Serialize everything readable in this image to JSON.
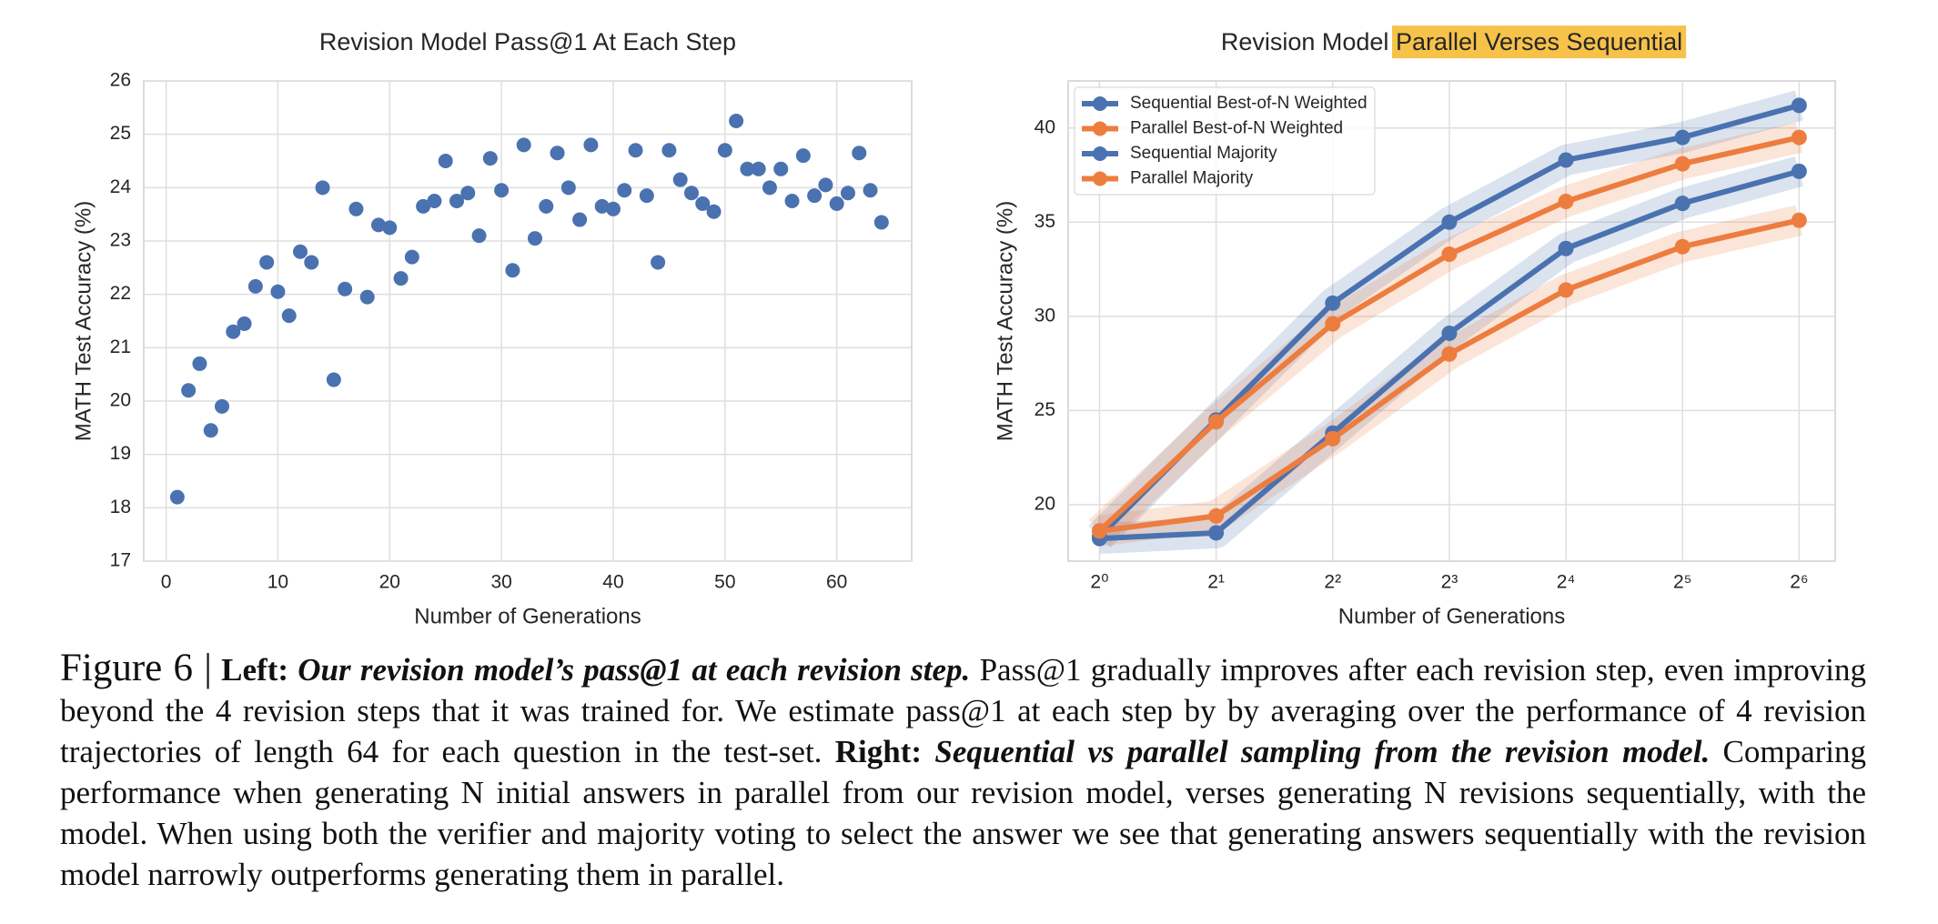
{
  "chart_data": [
    {
      "type": "scatter",
      "title": "Revision Model Pass@1 At Each Step",
      "x_label": "Number of Generations",
      "y_label": "MATH Test Accuracy (%)",
      "x": [
        1,
        2,
        3,
        4,
        5,
        6,
        7,
        8,
        9,
        10,
        11,
        12,
        13,
        14,
        15,
        16,
        17,
        18,
        19,
        20,
        21,
        22,
        23,
        24,
        25,
        26,
        27,
        28,
        29,
        30,
        31,
        32,
        33,
        34,
        35,
        36,
        37,
        38,
        39,
        40,
        41,
        42,
        43,
        44,
        45,
        46,
        47,
        48,
        49,
        50,
        51,
        52,
        53,
        54,
        55,
        56,
        57,
        58,
        59,
        60,
        61,
        62,
        63,
        64
      ],
      "values": [
        18.2,
        20.2,
        20.7,
        19.45,
        19.9,
        21.3,
        21.45,
        22.15,
        22.6,
        22.05,
        21.6,
        22.8,
        22.6,
        24.0,
        20.4,
        22.1,
        23.6,
        21.95,
        23.3,
        23.25,
        22.3,
        22.7,
        23.65,
        23.75,
        24.5,
        23.75,
        23.9,
        23.1,
        24.55,
        23.95,
        22.45,
        24.8,
        23.05,
        23.65,
        24.65,
        24.0,
        23.4,
        24.8,
        23.65,
        23.6,
        23.95,
        24.7,
        23.85,
        22.6,
        24.7,
        24.15,
        23.9,
        23.7,
        23.55,
        24.7,
        25.25,
        24.35,
        24.35,
        24.0,
        24.35,
        23.75,
        24.6,
        23.85,
        24.05,
        23.7,
        23.9,
        24.65,
        23.95,
        23.35
      ],
      "color": "#4a72b0",
      "xlim": [
        -2,
        66.7
      ],
      "ylim": [
        17,
        26
      ],
      "xticks": [
        0,
        10,
        20,
        30,
        40,
        50,
        60
      ],
      "yticks": [
        17,
        18,
        19,
        20,
        21,
        22,
        23,
        24,
        25,
        26
      ],
      "grid": true
    },
    {
      "type": "line",
      "title": "Revision Model",
      "title_highlight": "Parallel Verses Sequential",
      "x_label": "Number of Generations",
      "y_label": "MATH Test Accuracy (%)",
      "x": [
        1,
        2,
        4,
        8,
        16,
        32,
        64
      ],
      "x_scale": "log",
      "series": [
        {
          "name": "Sequential Best-of-N Weighted",
          "color": "#4a72b0",
          "values": [
            18.3,
            24.5,
            30.7,
            35.0,
            38.3,
            39.5,
            41.2
          ]
        },
        {
          "name": "Parallel Best-of-N Weighted",
          "color": "#ed7d3f",
          "values": [
            18.6,
            24.4,
            29.6,
            33.3,
            36.1,
            38.1,
            39.5
          ]
        },
        {
          "name": "Sequential Majority",
          "color": "#4a72b0",
          "values": [
            18.2,
            18.5,
            23.8,
            29.1,
            33.6,
            36.0,
            37.7
          ]
        },
        {
          "name": "Parallel Majority",
          "color": "#ed7d3f",
          "values": [
            18.6,
            19.4,
            23.5,
            28.0,
            31.4,
            33.7,
            35.1
          ]
        }
      ],
      "xlim": [
        0.83,
        79.3
      ],
      "ylim": [
        17,
        42.5
      ],
      "xticks": [
        {
          "value": 1,
          "label": "2⁰"
        },
        {
          "value": 2,
          "label": "2¹"
        },
        {
          "value": 4,
          "label": "2²"
        },
        {
          "value": 8,
          "label": "2³"
        },
        {
          "value": 16,
          "label": "2⁴"
        },
        {
          "value": 32,
          "label": "2⁵"
        },
        {
          "value": 64,
          "label": "2⁶"
        }
      ],
      "yticks": [
        20,
        25,
        30,
        35,
        40
      ],
      "grid": true,
      "legend": "upper left"
    }
  ],
  "caption": [
    {
      "text": "Figure 6 |",
      "style": "figure"
    },
    {
      "text": "Left:",
      "style": "bold"
    },
    {
      "text": "Our revision model’s pass@1 at each revision step.",
      "style": "bold-italic"
    },
    {
      "text": "Pass@1 gradually improves after each revision step, even improving beyond the 4 revision steps that it was trained for. We estimate pass@1 at each step by by averaging over the performance of 4 revision trajectories of length 64 for each question in the test-set.",
      "style": "normal"
    },
    {
      "text": "Right:",
      "style": "bold"
    },
    {
      "text": "Sequential vs parallel sampling from the revision model.",
      "style": "bold-italic"
    },
    {
      "text": "Comparing performance when generating N initial answers in parallel from our revision model, verses generating N revisions sequentially, with the model. When using both the verifier and majority voting to select the answer we see that generating answers sequentially with the revision model narrowly outperforms generating them in parallel.",
      "style": "normal"
    }
  ]
}
